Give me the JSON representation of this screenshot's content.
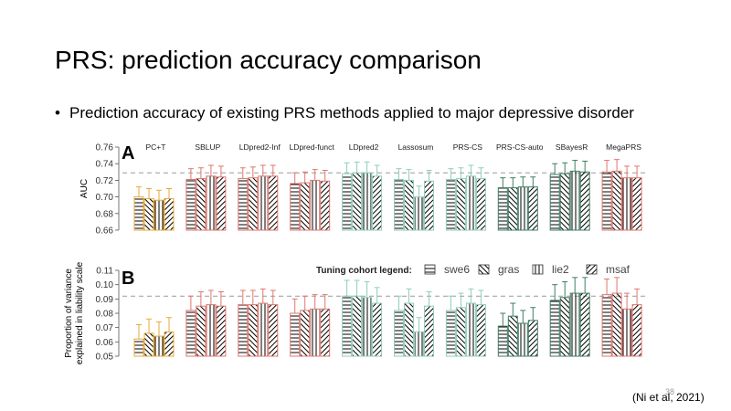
{
  "slide": {
    "title": "PRS: prediction accuracy comparison",
    "bullet_marker": "•",
    "bullet": "Prediction accuracy of existing PRS methods applied to major depressive disorder",
    "page_number": "38",
    "citation": "(Ni et al, 2021)"
  },
  "colors": {
    "orange": "#e8a93a",
    "red": "#e0766d",
    "green": "#8fcfb6",
    "darkgreen": "#3f7f63"
  },
  "chart_data": [
    {
      "type": "bar",
      "panel_label": "A",
      "ylabel": "AUC",
      "ylim": [
        0.66,
        0.76
      ],
      "yticks": [
        "0.76",
        "0.74",
        "0.72",
        "0.70",
        "0.68",
        "0.66"
      ],
      "reference_line": 0.729,
      "categories": [
        "PC+T",
        "SBLUP",
        "LDpred2-Inf",
        "LDpred-funct",
        "LDpred2",
        "Lassosum",
        "PRS-CS",
        "PRS-CS-auto",
        "SBayesR",
        "MegaPRS"
      ],
      "category_colors": [
        "orange",
        "red",
        "red",
        "red",
        "green",
        "green",
        "green",
        "darkgreen",
        "darkgreen",
        "red"
      ],
      "series": [
        {
          "name": "swe6",
          "values": [
            0.7,
            0.721,
            0.722,
            0.716,
            0.728,
            0.721,
            0.721,
            0.711,
            0.727,
            0.73
          ]
        },
        {
          "name": "gras",
          "values": [
            0.698,
            0.722,
            0.723,
            0.717,
            0.729,
            0.72,
            0.722,
            0.711,
            0.728,
            0.731
          ]
        },
        {
          "name": "lie2",
          "values": [
            0.696,
            0.725,
            0.725,
            0.72,
            0.729,
            0.7,
            0.725,
            0.712,
            0.731,
            0.723
          ]
        },
        {
          "name": "msaf",
          "values": [
            0.698,
            0.724,
            0.725,
            0.719,
            0.725,
            0.719,
            0.722,
            0.712,
            0.73,
            0.723
          ]
        }
      ],
      "error_bars": [
        0.012,
        0.013,
        0.013,
        0.013,
        0.013,
        0.013,
        0.013,
        0.012,
        0.013,
        0.014
      ]
    },
    {
      "type": "bar",
      "panel_label": "B",
      "ylabel": "Proportion of variance explained in liability scale",
      "ylim": [
        0.05,
        0.11
      ],
      "yticks": [
        "0.11",
        "0.10",
        "0.09",
        "0.08",
        "0.07",
        "0.06",
        "0.05"
      ],
      "reference_line": 0.092,
      "legend_title": "Tuning cohort legend:",
      "legend_placement": "top",
      "categories": [
        "PC+T",
        "SBLUP",
        "LDpred2-Inf",
        "LDpred-funct",
        "LDpred2",
        "Lassosum",
        "PRS-CS",
        "PRS-CS-auto",
        "SBayesR",
        "MegaPRS"
      ],
      "category_colors": [
        "orange",
        "red",
        "red",
        "red",
        "green",
        "green",
        "green",
        "darkgreen",
        "darkgreen",
        "red"
      ],
      "series": [
        {
          "name": "swe6",
          "values": [
            0.062,
            0.082,
            0.086,
            0.08,
            0.092,
            0.082,
            0.082,
            0.071,
            0.089,
            0.093
          ]
        },
        {
          "name": "gras",
          "values": [
            0.066,
            0.085,
            0.086,
            0.082,
            0.092,
            0.087,
            0.084,
            0.078,
            0.091,
            0.094
          ]
        },
        {
          "name": "lie2",
          "values": [
            0.064,
            0.086,
            0.087,
            0.083,
            0.091,
            0.067,
            0.087,
            0.073,
            0.094,
            0.083
          ]
        },
        {
          "name": "msaf",
          "values": [
            0.067,
            0.085,
            0.086,
            0.083,
            0.087,
            0.085,
            0.086,
            0.075,
            0.094,
            0.086
          ]
        }
      ],
      "error_bars": [
        0.01,
        0.01,
        0.01,
        0.01,
        0.011,
        0.01,
        0.01,
        0.009,
        0.011,
        0.011
      ]
    }
  ]
}
